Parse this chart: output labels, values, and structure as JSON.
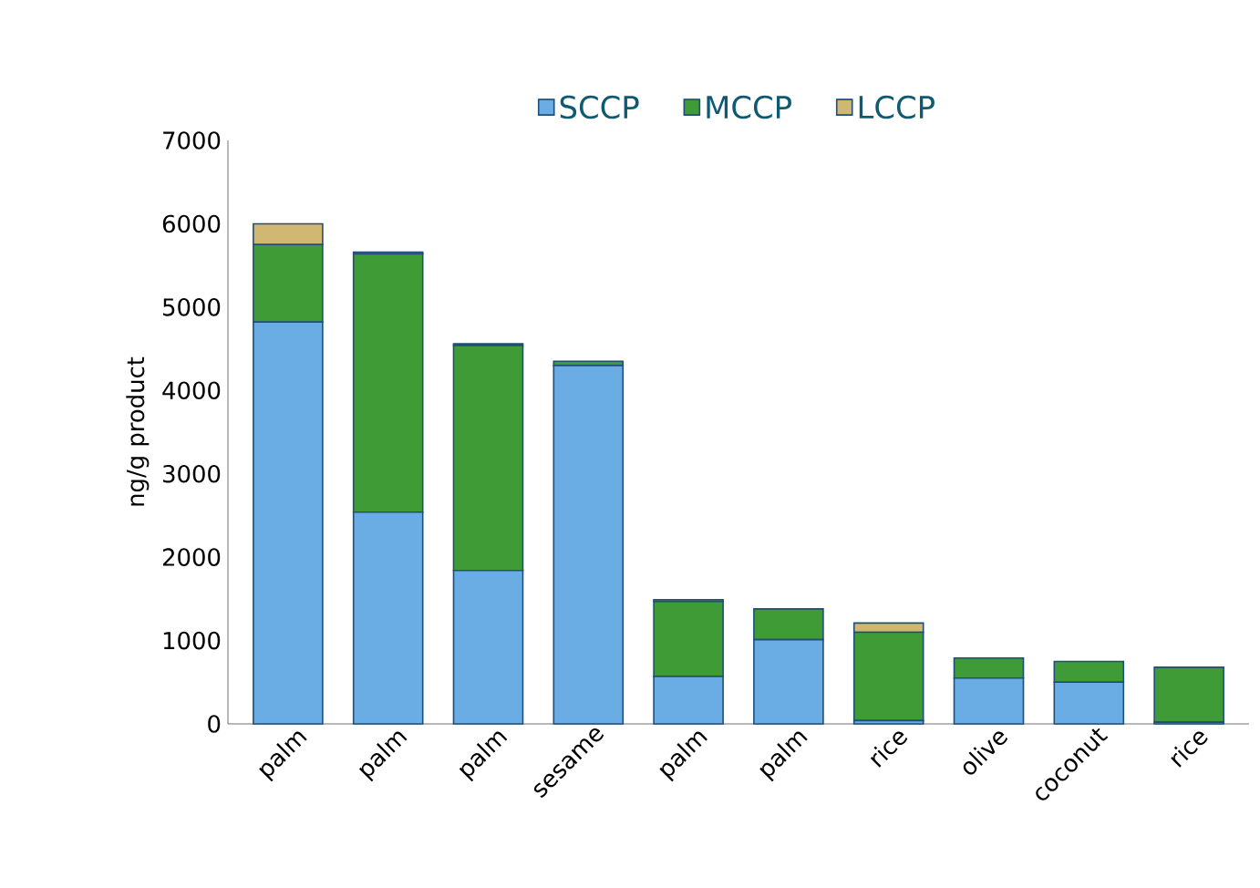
{
  "chart_data": {
    "type": "bar",
    "stacked": true,
    "ylabel": "ng/g product",
    "categories": [
      "palm",
      "palm",
      "palm",
      "sesame",
      "palm",
      "palm",
      "rice",
      "olive",
      "coconut",
      "rice"
    ],
    "series": [
      {
        "name": "SCCP",
        "color": "#6aade4",
        "values": [
          4820,
          2540,
          1840,
          4300,
          570,
          1010,
          40,
          550,
          500,
          20
        ]
      },
      {
        "name": "MCCP",
        "color": "#3f9b35",
        "values": [
          930,
          3100,
          2700,
          50,
          900,
          370,
          1060,
          240,
          250,
          660
        ]
      },
      {
        "name": "LCCP",
        "color": "#d1b872",
        "values": [
          250,
          20,
          20,
          0,
          20,
          0,
          110,
          0,
          0,
          0
        ]
      }
    ],
    "ylim": [
      0,
      7000
    ],
    "yticks": [
      0,
      1000,
      2000,
      3000,
      4000,
      5000,
      6000,
      7000
    ],
    "grid": false,
    "legend": "top"
  }
}
